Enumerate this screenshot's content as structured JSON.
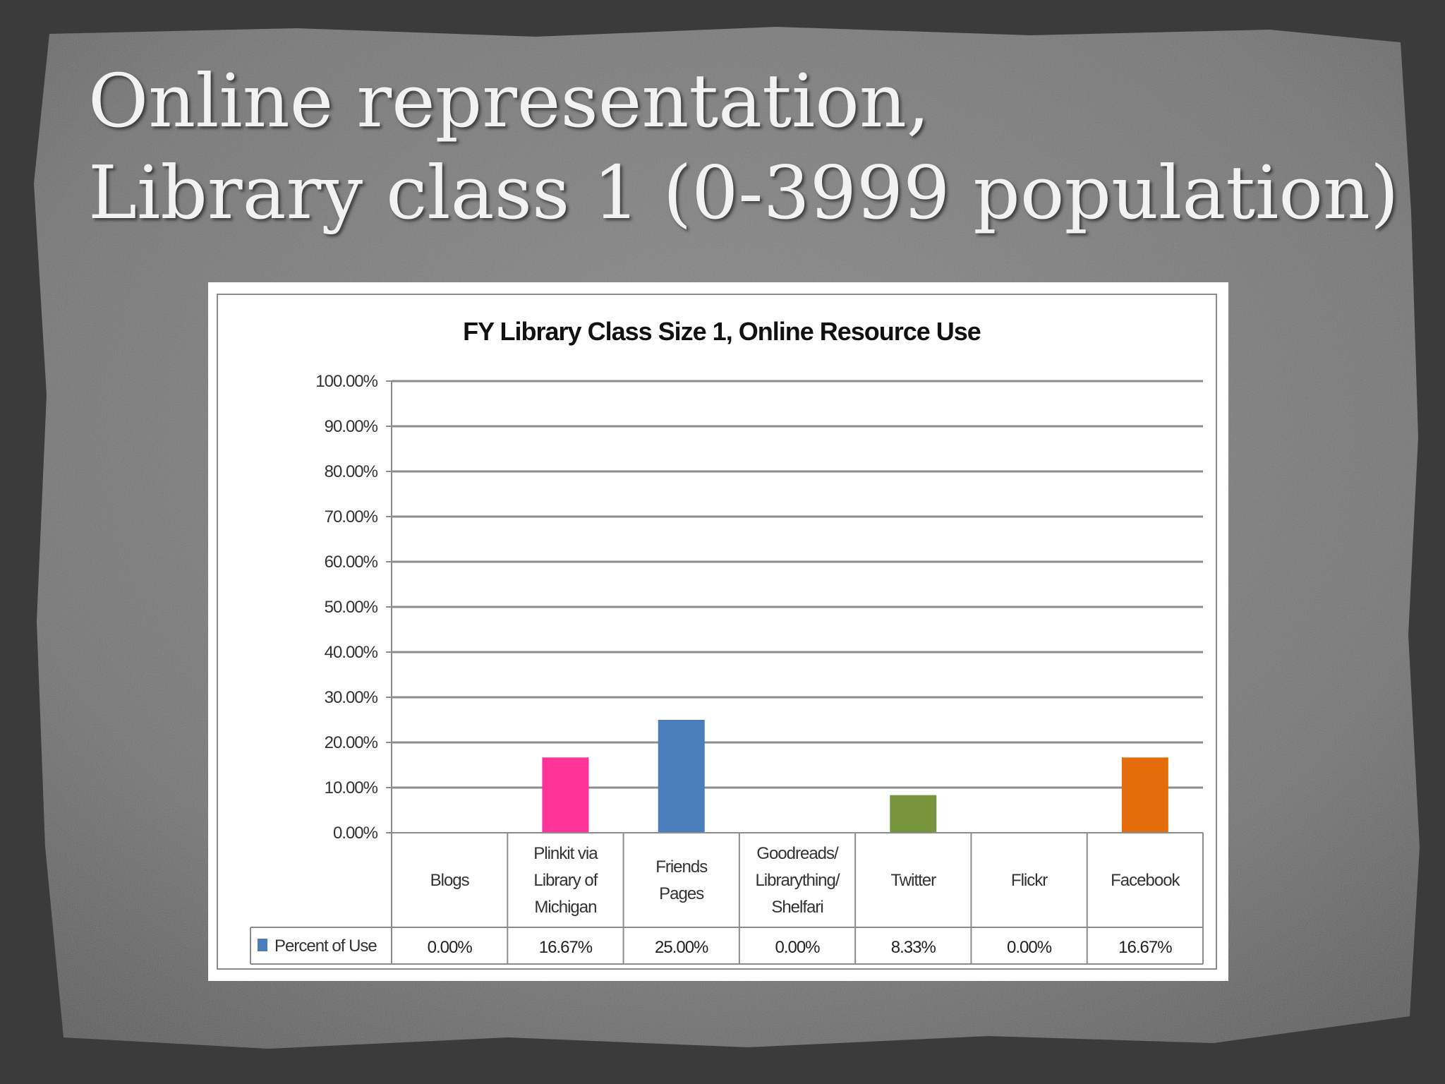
{
  "slide": {
    "title_line1": "Online representation,",
    "title_line2": "Library class 1 (0-3999 population)"
  },
  "colors": {
    "slide_background": "#3f3f3f",
    "paper": "#7a7a7a",
    "legend_marker": "#4a7ebb"
  },
  "chart_data": {
    "type": "bar",
    "title": "FY Library Class Size 1, Online Resource Use",
    "xlabel": "",
    "ylabel": "",
    "ylim": [
      0,
      100
    ],
    "y_ticks": [
      "0.00%",
      "10.00%",
      "20.00%",
      "30.00%",
      "40.00%",
      "50.00%",
      "60.00%",
      "70.00%",
      "80.00%",
      "90.00%",
      "100.00%"
    ],
    "categories": [
      [
        "Blogs"
      ],
      [
        "Plinkit via",
        "Library of",
        "Michigan"
      ],
      [
        "Friends",
        "Pages"
      ],
      [
        "Goodreads/",
        "Librarything/",
        "Shelfari"
      ],
      [
        "Twitter"
      ],
      [
        "Flickr"
      ],
      [
        "Facebook"
      ]
    ],
    "series": [
      {
        "name": "Percent of Use",
        "values": [
          0,
          16.67,
          25.0,
          0,
          8.33,
          0,
          16.67
        ],
        "labels": [
          "0.00%",
          "16.67%",
          "25.00%",
          "0.00%",
          "8.33%",
          "0.00%",
          "16.67%"
        ],
        "colors": [
          "#4a7ebb",
          "#ff3399",
          "#4a7ebb",
          "#4a7ebb",
          "#76953c",
          "#4a7ebb",
          "#e46c0a"
        ]
      }
    ],
    "grid": true,
    "legend": "data-table"
  }
}
